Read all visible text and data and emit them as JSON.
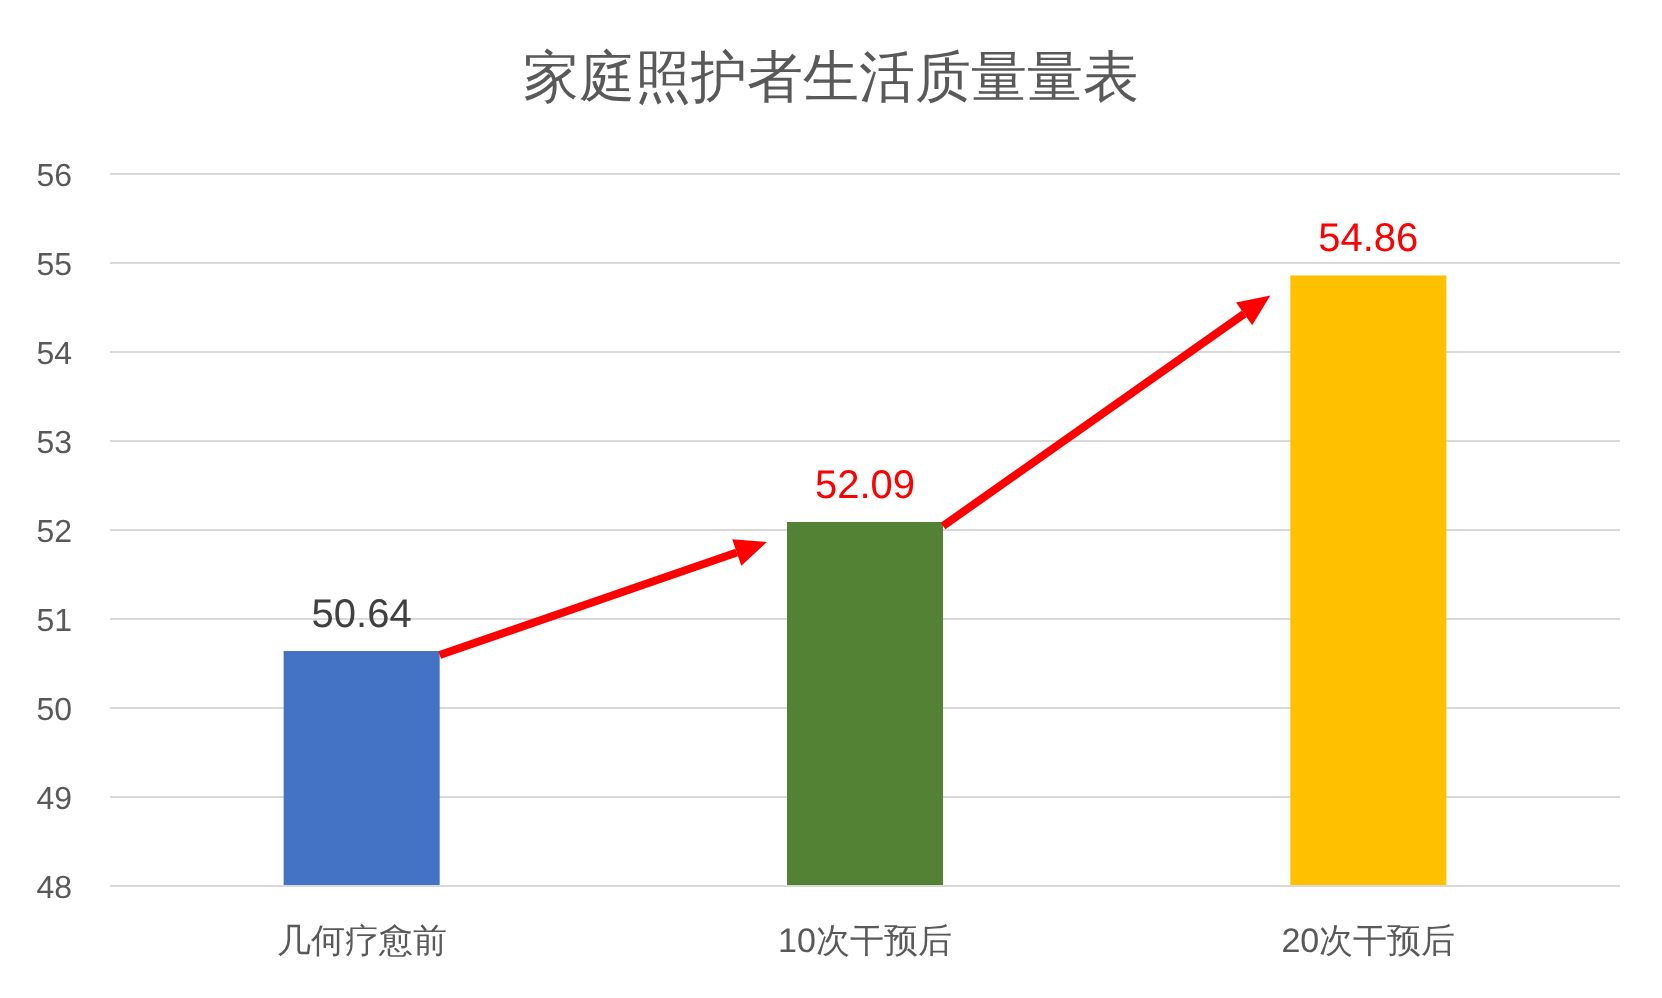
{
  "chart_data": {
    "type": "bar",
    "title": "家庭照护者生活质量量表",
    "categories": [
      "几何疗愈前",
      "10次干预后",
      "20次干预后"
    ],
    "values": [
      50.64,
      52.09,
      54.86
    ],
    "colors": [
      "#4472c4",
      "#548235",
      "#ffc000"
    ],
    "ylim": [
      48,
      56
    ],
    "yticks": [
      48,
      49,
      50,
      51,
      52,
      53,
      54,
      55,
      56
    ],
    "grid": "y",
    "data_labels": true
  }
}
